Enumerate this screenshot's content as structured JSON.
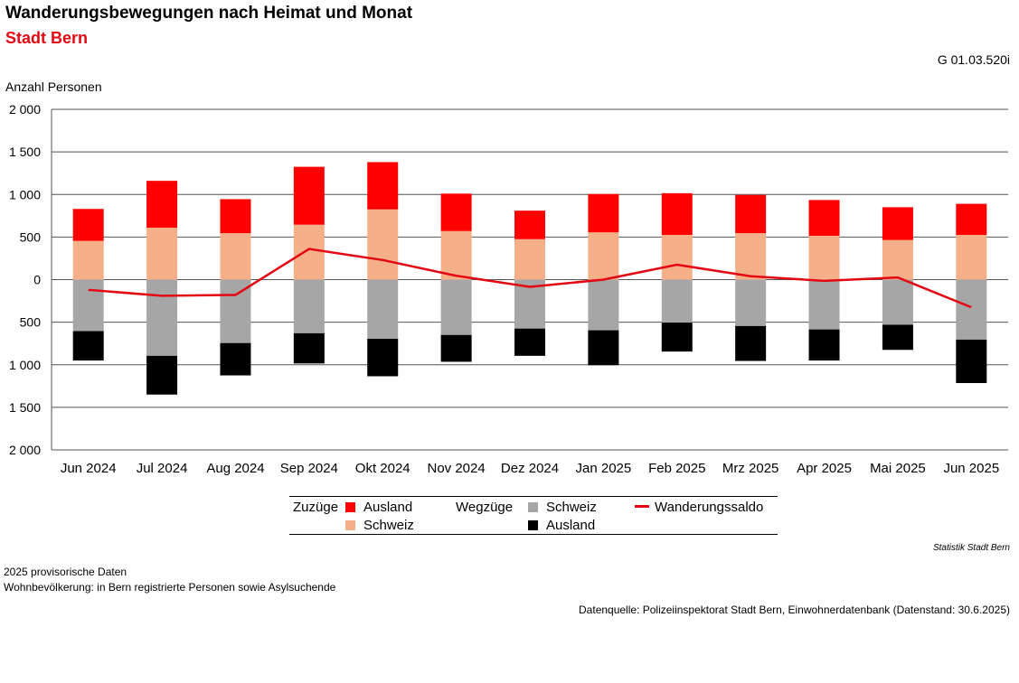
{
  "header": {
    "title": "Wanderungsbewegungen nach Heimat und Monat",
    "subtitle": "Stadt Bern",
    "code": "G 01.03.520i"
  },
  "colors": {
    "zuzuege_ausland": "#ff0000",
    "zuzuege_schweiz": "#f5b08a",
    "wegzuege_schweiz": "#a6a6a6",
    "wegzuege_ausland": "#000000",
    "saldo": "#e30613",
    "subtitle": "#e30613"
  },
  "chart_data": {
    "type": "bar",
    "stacked": true,
    "title": "Wanderungsbewegungen nach Heimat und Monat",
    "ylabel": "Anzahl Personen",
    "ylim": [
      -2000,
      2000
    ],
    "yticks": [
      2000,
      1500,
      1000,
      500,
      0,
      -500,
      -1000,
      -1500,
      -2000
    ],
    "ytick_labels": [
      "2 000",
      "1 500",
      "1 000",
      "500",
      "0",
      "500",
      "1 000",
      "1 500",
      "2 000"
    ],
    "grid": true,
    "legend_position": "bottom",
    "categories": [
      "Jun 2024",
      "Jul 2024",
      "Aug 2024",
      "Sep 2024",
      "Okt 2024",
      "Nov 2024",
      "Dez 2024",
      "Jan 2025",
      "Feb 2025",
      "Mrz 2025",
      "Apr 2025",
      "Mai 2025",
      "Jun 2025"
    ],
    "series": [
      {
        "name": "Schweiz",
        "group": "Zuzüge",
        "values": [
          455,
          610,
          545,
          645,
          825,
          570,
          475,
          555,
          525,
          545,
          515,
          465,
          525
        ]
      },
      {
        "name": "Ausland",
        "group": "Zuzüge",
        "values": [
          375,
          550,
          400,
          680,
          555,
          440,
          335,
          450,
          490,
          450,
          420,
          385,
          365
        ]
      },
      {
        "name": "Schweiz",
        "group": "Wegzüge",
        "values": [
          -605,
          -895,
          -745,
          -630,
          -695,
          -650,
          -575,
          -595,
          -505,
          -545,
          -585,
          -530,
          -705
        ]
      },
      {
        "name": "Ausland",
        "group": "Wegzüge",
        "values": [
          -345,
          -455,
          -380,
          -355,
          -440,
          -315,
          -320,
          -410,
          -340,
          -410,
          -365,
          -295,
          -510
        ]
      },
      {
        "name": "Wanderungssaldo",
        "type": "line",
        "values": [
          -120,
          -190,
          -180,
          360,
          230,
          45,
          -85,
          0,
          175,
          40,
          -15,
          25,
          -325
        ]
      }
    ]
  },
  "legend": {
    "group_in": "Zuzüge",
    "group_out": "Wegzüge",
    "in_ausland": "Ausland",
    "in_schweiz": "Schweiz",
    "out_schweiz": "Schweiz",
    "out_ausland": "Ausland",
    "saldo": "Wanderungssaldo"
  },
  "footer": {
    "source_small": "Statistik Stadt Bern",
    "note1": "2025 provisorische Daten",
    "note2": "Wohnbevölkerung: in Bern registrierte Personen sowie Asylsuchende",
    "datasource": "Datenquelle: Polizeiinspektorat Stadt Bern, Einwohnerdatenbank (Datenstand: 30.6.2025)"
  }
}
